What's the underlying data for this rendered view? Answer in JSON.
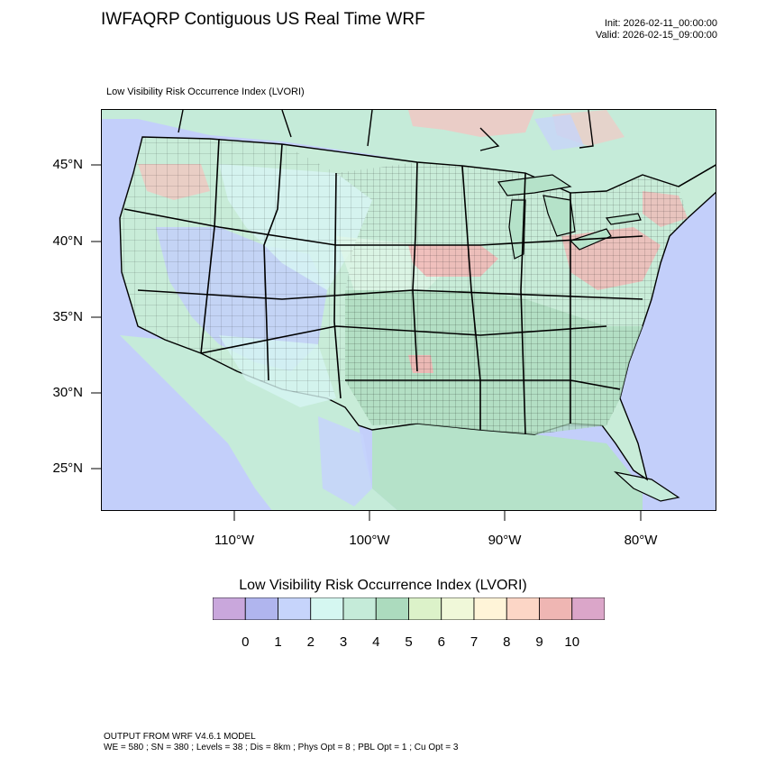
{
  "header": {
    "title": "IWFAQRP Contiguous US Real Time WRF",
    "init": "Init: 2026-02-11_00:00:00",
    "valid": "Valid: 2026-02-15_09:00:00"
  },
  "field_label": "Low Visibility Risk Occurrence Index   (LVORI)",
  "map": {
    "projection": "lambert-conformal",
    "lat_ticks": [
      "45°N",
      "40°N",
      "35°N",
      "30°N",
      "25°N"
    ],
    "lon_ticks": [
      "110°W",
      "100°W",
      "90°W",
      "80°W"
    ],
    "ocean_color": "#c3cffa",
    "land_base_color": "#c8ecd8",
    "high_risk_color": "#f5b3b3"
  },
  "colorbar": {
    "title": "Low Visibility Risk Occurrence Index  (LVORI)",
    "colors": [
      "#c9a7dc",
      "#b0b5ee",
      "#c6d4fb",
      "#d5f7f1",
      "#c5ebd9",
      "#acdbbe",
      "#dcf2c9",
      "#f0f8d9",
      "#fff4d8",
      "#fcd6c6",
      "#efb6b3",
      "#dba6c9"
    ],
    "labels": [
      "0",
      "1",
      "2",
      "3",
      "4",
      "5",
      "6",
      "7",
      "8",
      "9",
      "10"
    ]
  },
  "footer": {
    "line1": "OUTPUT FROM WRF V4.6.1 MODEL",
    "line2": "WE = 580 ; SN = 380 ; Levels = 38 ; Dis = 8km ; Phys Opt = 8 ; PBL Opt = 1 ; Cu Opt = 3"
  }
}
